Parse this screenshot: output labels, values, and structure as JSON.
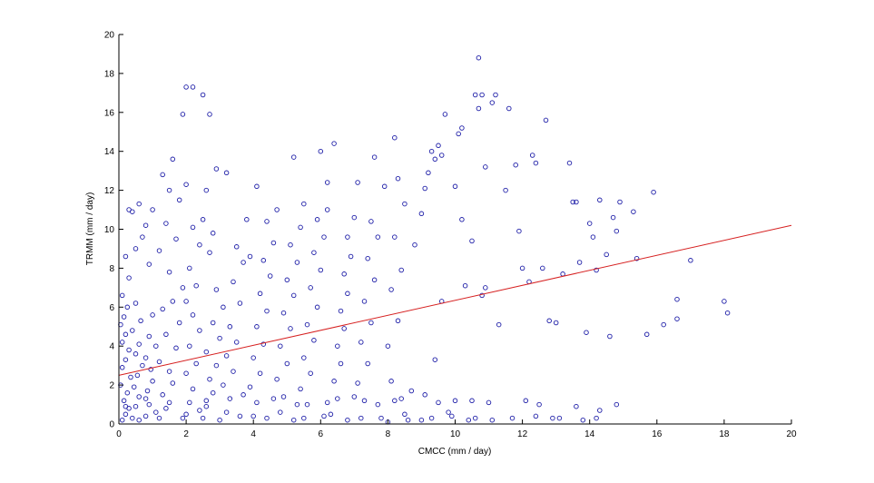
{
  "chart_data": {
    "type": "scatter",
    "title": "",
    "xlabel": "CMCC (mm / day)",
    "ylabel": "TRMM (mm / day)",
    "xlim": [
      0,
      20
    ],
    "ylim": [
      0,
      20
    ],
    "xticks": [
      "0",
      "2",
      "4",
      "6",
      "8",
      "10",
      "12",
      "14",
      "16",
      "18",
      "20"
    ],
    "yticks": [
      "0",
      "2",
      "4",
      "6",
      "8",
      "10",
      "12",
      "14",
      "16",
      "18",
      "20"
    ],
    "grid": false,
    "legend": "none",
    "colors": {
      "points": "#1f1fa8",
      "fit_line": "#d62020",
      "axes": "#000000"
    },
    "series": [
      {
        "type": "scatter",
        "points": [
          [
            0.1,
            0.2
          ],
          [
            0.2,
            0.5
          ],
          [
            0.3,
            0.8
          ],
          [
            0.15,
            1.2
          ],
          [
            0.25,
            1.6
          ],
          [
            0.05,
            2.0
          ],
          [
            0.35,
            2.4
          ],
          [
            0.1,
            2.9
          ],
          [
            0.2,
            3.3
          ],
          [
            0.3,
            3.8
          ],
          [
            0.1,
            4.2
          ],
          [
            0.2,
            4.6
          ],
          [
            0.05,
            5.1
          ],
          [
            0.15,
            5.5
          ],
          [
            0.25,
            6.0
          ],
          [
            0.1,
            6.6
          ],
          [
            0.4,
            0.3
          ],
          [
            0.5,
            0.9
          ],
          [
            0.6,
            1.4
          ],
          [
            0.45,
            1.9
          ],
          [
            0.55,
            2.5
          ],
          [
            0.7,
            3.0
          ],
          [
            0.5,
            3.6
          ],
          [
            0.6,
            4.1
          ],
          [
            0.4,
            4.8
          ],
          [
            0.65,
            5.3
          ],
          [
            0.5,
            6.2
          ],
          [
            0.8,
            0.4
          ],
          [
            0.9,
            1.0
          ],
          [
            0.85,
            1.7
          ],
          [
            1.0,
            2.2
          ],
          [
            0.95,
            2.8
          ],
          [
            0.8,
            3.4
          ],
          [
            1.1,
            4.0
          ],
          [
            0.9,
            4.5
          ],
          [
            1.0,
            5.6
          ],
          [
            0.3,
            7.5
          ],
          [
            0.5,
            9.0
          ],
          [
            0.4,
            10.9
          ],
          [
            0.6,
            11.3
          ],
          [
            0.2,
            8.6
          ],
          [
            0.8,
            10.2
          ],
          [
            1.0,
            11.0
          ],
          [
            0.7,
            9.6
          ],
          [
            0.3,
            11.0
          ],
          [
            0.9,
            8.2
          ],
          [
            1.2,
            0.3
          ],
          [
            1.4,
            0.8
          ],
          [
            1.3,
            1.5
          ],
          [
            1.6,
            2.1
          ],
          [
            1.5,
            2.7
          ],
          [
            1.2,
            3.2
          ],
          [
            1.7,
            3.9
          ],
          [
            1.4,
            4.6
          ],
          [
            1.8,
            5.2
          ],
          [
            1.3,
            5.9
          ],
          [
            1.6,
            6.3
          ],
          [
            1.9,
            7.0
          ],
          [
            1.5,
            7.8
          ],
          [
            1.2,
            8.9
          ],
          [
            1.7,
            9.5
          ],
          [
            1.4,
            10.3
          ],
          [
            1.3,
            12.8
          ],
          [
            1.5,
            12.0
          ],
          [
            1.6,
            13.6
          ],
          [
            1.8,
            11.5
          ],
          [
            2.0,
            0.5
          ],
          [
            2.1,
            1.1
          ],
          [
            2.2,
            1.8
          ],
          [
            2.0,
            2.6
          ],
          [
            2.3,
            3.1
          ],
          [
            2.1,
            4.0
          ],
          [
            2.4,
            4.8
          ],
          [
            2.2,
            5.6
          ],
          [
            2.0,
            6.3
          ],
          [
            2.3,
            7.1
          ],
          [
            2.1,
            8.0
          ],
          [
            2.4,
            9.2
          ],
          [
            2.2,
            10.1
          ],
          [
            2.0,
            12.3
          ],
          [
            1.9,
            15.9
          ],
          [
            2.0,
            17.3
          ],
          [
            2.2,
            17.3
          ],
          [
            2.5,
            16.9
          ],
          [
            2.7,
            15.9
          ],
          [
            2.9,
            13.1
          ],
          [
            2.6,
            12.0
          ],
          [
            2.5,
            10.5
          ],
          [
            2.8,
            9.8
          ],
          [
            2.7,
            8.8
          ],
          [
            2.5,
            0.3
          ],
          [
            2.6,
            0.9
          ],
          [
            2.8,
            1.6
          ],
          [
            2.7,
            2.3
          ],
          [
            2.9,
            3.0
          ],
          [
            2.6,
            3.7
          ],
          [
            3.0,
            4.4
          ],
          [
            2.8,
            5.2
          ],
          [
            3.1,
            6.0
          ],
          [
            2.9,
            6.9
          ],
          [
            3.2,
            0.6
          ],
          [
            3.3,
            1.3
          ],
          [
            3.1,
            2.0
          ],
          [
            3.4,
            2.7
          ],
          [
            3.2,
            3.5
          ],
          [
            3.5,
            4.2
          ],
          [
            3.3,
            5.0
          ],
          [
            3.6,
            6.2
          ],
          [
            3.4,
            7.3
          ],
          [
            3.7,
            8.3
          ],
          [
            3.5,
            9.1
          ],
          [
            3.8,
            10.5
          ],
          [
            3.2,
            12.9
          ],
          [
            4.1,
            12.2
          ],
          [
            3.9,
            8.6
          ],
          [
            4.0,
            0.4
          ],
          [
            4.1,
            1.1
          ],
          [
            3.9,
            1.9
          ],
          [
            4.2,
            2.6
          ],
          [
            4.0,
            3.4
          ],
          [
            4.3,
            4.1
          ],
          [
            4.1,
            5.0
          ],
          [
            4.4,
            5.8
          ],
          [
            4.2,
            6.7
          ],
          [
            4.5,
            7.6
          ],
          [
            4.3,
            8.4
          ],
          [
            4.6,
            9.3
          ],
          [
            4.4,
            10.4
          ],
          [
            4.7,
            11.0
          ],
          [
            4.8,
            0.6
          ],
          [
            4.9,
            1.4
          ],
          [
            4.7,
            2.3
          ],
          [
            5.0,
            3.1
          ],
          [
            4.8,
            4.0
          ],
          [
            5.1,
            4.9
          ],
          [
            4.9,
            5.7
          ],
          [
            5.2,
            6.6
          ],
          [
            5.0,
            7.4
          ],
          [
            5.3,
            8.3
          ],
          [
            5.1,
            9.2
          ],
          [
            5.4,
            10.1
          ],
          [
            5.2,
            13.7
          ],
          [
            5.5,
            11.3
          ],
          [
            5.5,
            0.3
          ],
          [
            5.6,
            1.0
          ],
          [
            5.4,
            1.8
          ],
          [
            5.7,
            2.6
          ],
          [
            5.5,
            3.4
          ],
          [
            5.8,
            4.3
          ],
          [
            5.6,
            5.1
          ],
          [
            5.9,
            6.0
          ],
          [
            5.7,
            7.0
          ],
          [
            6.0,
            7.9
          ],
          [
            5.8,
            8.8
          ],
          [
            6.1,
            9.6
          ],
          [
            5.9,
            10.5
          ],
          [
            6.2,
            11.0
          ],
          [
            6.0,
            14.0
          ],
          [
            6.4,
            14.4
          ],
          [
            6.2,
            12.4
          ],
          [
            6.3,
            0.5
          ],
          [
            6.5,
            1.3
          ],
          [
            6.4,
            2.2
          ],
          [
            6.6,
            3.1
          ],
          [
            6.5,
            4.0
          ],
          [
            6.7,
            4.9
          ],
          [
            6.6,
            5.8
          ],
          [
            6.8,
            6.7
          ],
          [
            6.7,
            7.7
          ],
          [
            6.9,
            8.6
          ],
          [
            6.8,
            9.6
          ],
          [
            7.0,
            10.6
          ],
          [
            7.1,
            12.4
          ],
          [
            7.2,
            0.3
          ],
          [
            7.3,
            1.2
          ],
          [
            7.1,
            2.1
          ],
          [
            7.4,
            3.1
          ],
          [
            7.2,
            4.2
          ],
          [
            7.5,
            5.2
          ],
          [
            7.3,
            6.3
          ],
          [
            7.6,
            7.4
          ],
          [
            7.4,
            8.5
          ],
          [
            7.7,
            9.6
          ],
          [
            7.5,
            10.4
          ],
          [
            7.6,
            13.7
          ],
          [
            7.9,
            12.2
          ],
          [
            8.0,
            0.1
          ],
          [
            8.1,
            2.2
          ],
          [
            8.2,
            1.2
          ],
          [
            8.0,
            4.0
          ],
          [
            8.3,
            5.3
          ],
          [
            8.1,
            6.9
          ],
          [
            8.4,
            7.9
          ],
          [
            8.2,
            9.6
          ],
          [
            8.5,
            11.3
          ],
          [
            8.3,
            12.6
          ],
          [
            8.2,
            14.7
          ],
          [
            8.6,
            0.2
          ],
          [
            8.7,
            1.7
          ],
          [
            8.8,
            9.2
          ],
          [
            9.0,
            10.8
          ],
          [
            9.1,
            12.1
          ],
          [
            9.3,
            14.0
          ],
          [
            9.2,
            12.9
          ],
          [
            9.4,
            13.6
          ],
          [
            9.5,
            14.3
          ],
          [
            9.6,
            13.8
          ],
          [
            9.7,
            15.9
          ],
          [
            9.4,
            3.3
          ],
          [
            9.3,
            0.3
          ],
          [
            9.6,
            6.3
          ],
          [
            9.8,
            0.6
          ],
          [
            10.0,
            12.2
          ],
          [
            10.1,
            14.9
          ],
          [
            10.2,
            15.2
          ],
          [
            10.0,
            1.2
          ],
          [
            10.2,
            10.5
          ],
          [
            10.3,
            7.1
          ],
          [
            10.5,
            9.4
          ],
          [
            10.4,
            0.2
          ],
          [
            10.7,
            18.8
          ],
          [
            10.6,
            16.9
          ],
          [
            10.8,
            16.9
          ],
          [
            10.7,
            16.2
          ],
          [
            10.9,
            13.2
          ],
          [
            10.8,
            6.6
          ],
          [
            10.9,
            7.0
          ],
          [
            11.2,
            16.9
          ],
          [
            11.1,
            16.5
          ],
          [
            11.3,
            5.1
          ],
          [
            11.5,
            12.0
          ],
          [
            11.6,
            16.2
          ],
          [
            11.8,
            13.3
          ],
          [
            11.9,
            9.9
          ],
          [
            12.0,
            8.0
          ],
          [
            12.1,
            1.2
          ],
          [
            12.3,
            13.8
          ],
          [
            12.4,
            13.4
          ],
          [
            12.2,
            7.3
          ],
          [
            12.6,
            8.0
          ],
          [
            12.7,
            15.6
          ],
          [
            12.8,
            5.3
          ],
          [
            12.9,
            0.3
          ],
          [
            13.0,
            5.2
          ],
          [
            13.2,
            7.7
          ],
          [
            13.4,
            13.4
          ],
          [
            13.5,
            11.4
          ],
          [
            13.6,
            11.4
          ],
          [
            13.7,
            8.3
          ],
          [
            13.9,
            4.7
          ],
          [
            14.0,
            10.3
          ],
          [
            14.1,
            9.6
          ],
          [
            14.2,
            7.9
          ],
          [
            14.3,
            11.5
          ],
          [
            14.5,
            8.7
          ],
          [
            14.6,
            4.5
          ],
          [
            14.7,
            10.6
          ],
          [
            14.8,
            9.9
          ],
          [
            14.9,
            11.4
          ],
          [
            14.8,
            1.0
          ],
          [
            15.3,
            10.9
          ],
          [
            15.4,
            8.5
          ],
          [
            15.7,
            4.6
          ],
          [
            15.9,
            11.9
          ],
          [
            16.2,
            5.1
          ],
          [
            16.6,
            6.4
          ],
          [
            16.6,
            5.4
          ],
          [
            17.0,
            8.4
          ],
          [
            18.0,
            6.3
          ],
          [
            18.1,
            5.7
          ],
          [
            0.6,
            0.2
          ],
          [
            1.1,
            0.6
          ],
          [
            1.9,
            0.3
          ],
          [
            2.4,
            0.7
          ],
          [
            3.0,
            0.2
          ],
          [
            3.6,
            0.4
          ],
          [
            4.4,
            0.3
          ],
          [
            5.2,
            0.2
          ],
          [
            6.1,
            0.4
          ],
          [
            6.8,
            0.2
          ],
          [
            7.8,
            0.3
          ],
          [
            8.5,
            0.5
          ],
          [
            9.0,
            0.2
          ],
          [
            9.9,
            0.4
          ],
          [
            10.6,
            0.3
          ],
          [
            11.1,
            0.2
          ],
          [
            11.7,
            0.3
          ],
          [
            12.4,
            0.4
          ],
          [
            13.1,
            0.3
          ],
          [
            13.8,
            0.2
          ],
          [
            14.2,
            0.3
          ],
          [
            0.2,
            0.9
          ],
          [
            0.8,
            1.3
          ],
          [
            1.5,
            1.1
          ],
          [
            2.6,
            1.2
          ],
          [
            3.7,
            1.5
          ],
          [
            4.6,
            1.3
          ],
          [
            5.3,
            1.0
          ],
          [
            6.2,
            1.1
          ],
          [
            7.0,
            1.4
          ],
          [
            7.7,
            1.0
          ],
          [
            8.4,
            1.3
          ],
          [
            9.1,
            1.5
          ],
          [
            9.5,
            1.1
          ],
          [
            10.5,
            1.2
          ],
          [
            11.0,
            1.1
          ],
          [
            12.5,
            1.0
          ],
          [
            13.6,
            0.9
          ],
          [
            14.3,
            0.7
          ]
        ]
      },
      {
        "type": "line",
        "x": [
          0,
          20
        ],
        "y": [
          2.5,
          10.2
        ]
      }
    ]
  }
}
